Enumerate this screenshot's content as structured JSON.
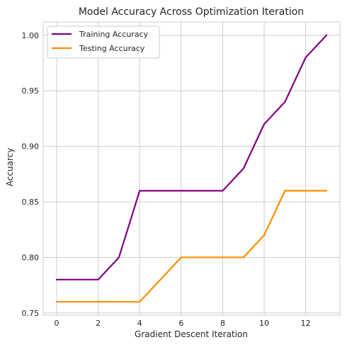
{
  "chart_data": {
    "type": "line",
    "title": "Model Accuracy Across Optimization Iteration",
    "xlabel": "Gradient Descent Iteration",
    "ylabel": "Accuarcy",
    "xlim": [
      -0.65,
      13.65
    ],
    "ylim": [
      0.748,
      1.012
    ],
    "xticks": [
      0,
      2,
      4,
      6,
      8,
      10,
      12
    ],
    "yticks": [
      0.75,
      0.8,
      0.85,
      0.9,
      0.95,
      1.0
    ],
    "ytick_labels": [
      "0.75",
      "0.80",
      "0.85",
      "0.90",
      "0.95",
      "1.00"
    ],
    "grid": true,
    "legend_position": "top-left",
    "x": [
      0,
      1,
      2,
      3,
      4,
      5,
      6,
      7,
      8,
      9,
      10,
      11,
      12,
      13
    ],
    "series": [
      {
        "name": "Training Accuracy",
        "color": "#800080",
        "values": [
          0.78,
          0.78,
          0.78,
          0.8,
          0.86,
          0.86,
          0.86,
          0.86,
          0.86,
          0.88,
          0.92,
          0.94,
          0.98,
          1.0
        ]
      },
      {
        "name": "Testing Accuracy",
        "color": "#ff8c00",
        "values": [
          0.76,
          0.76,
          0.76,
          0.76,
          0.76,
          0.78,
          0.8,
          0.8,
          0.8,
          0.8,
          0.82,
          0.86,
          0.86,
          0.86
        ]
      }
    ]
  }
}
